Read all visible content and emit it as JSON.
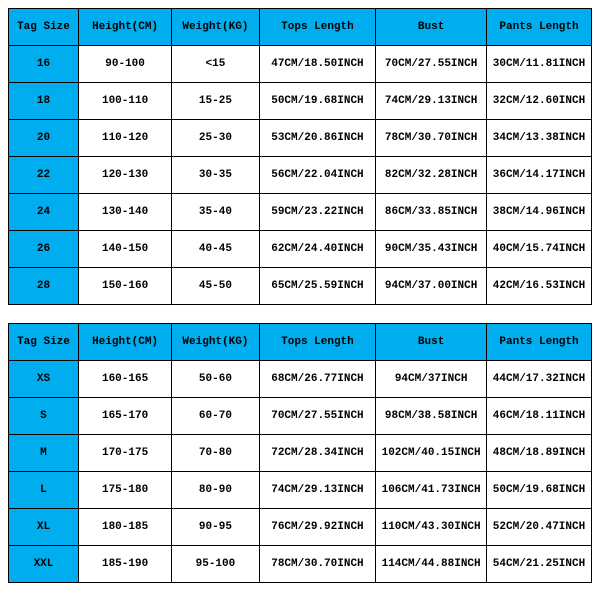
{
  "columns": [
    "Tag Size",
    "Height(CM)",
    "Weight(KG)",
    "Tops Length",
    "Bust",
    "Pants Length"
  ],
  "table1": [
    [
      "16",
      "90-100",
      "<15",
      "47CM/18.50INCH",
      "70CM/27.55INCH",
      "30CM/11.81INCH"
    ],
    [
      "18",
      "100-110",
      "15-25",
      "50CM/19.68INCH",
      "74CM/29.13INCH",
      "32CM/12.60INCH"
    ],
    [
      "20",
      "110-120",
      "25-30",
      "53CM/20.86INCH",
      "78CM/30.70INCH",
      "34CM/13.38INCH"
    ],
    [
      "22",
      "120-130",
      "30-35",
      "56CM/22.04INCH",
      "82CM/32.28INCH",
      "36CM/14.17INCH"
    ],
    [
      "24",
      "130-140",
      "35-40",
      "59CM/23.22INCH",
      "86CM/33.85INCH",
      "38CM/14.96INCH"
    ],
    [
      "26",
      "140-150",
      "40-45",
      "62CM/24.40INCH",
      "90CM/35.43INCH",
      "40CM/15.74INCH"
    ],
    [
      "28",
      "150-160",
      "45-50",
      "65CM/25.59INCH",
      "94CM/37.00INCH",
      "42CM/16.53INCH"
    ]
  ],
  "table2": [
    [
      "XS",
      "160-165",
      "50-60",
      "68CM/26.77INCH",
      "94CM/37INCH",
      "44CM/17.32INCH"
    ],
    [
      "S",
      "165-170",
      "60-70",
      "70CM/27.55INCH",
      "98CM/38.58INCH",
      "46CM/18.11INCH"
    ],
    [
      "M",
      "170-175",
      "70-80",
      "72CM/28.34INCH",
      "102CM/40.15INCH",
      "48CM/18.89INCH"
    ],
    [
      "L",
      "175-180",
      "80-90",
      "74CM/29.13INCH",
      "106CM/41.73INCH",
      "50CM/19.68INCH"
    ],
    [
      "XL",
      "180-185",
      "90-95",
      "76CM/29.92INCH",
      "110CM/43.30INCH",
      "52CM/20.47INCH"
    ],
    [
      "XXL",
      "185-190",
      "95-100",
      "78CM/30.70INCH",
      "114CM/44.88INCH",
      "54CM/21.25INCH"
    ]
  ]
}
